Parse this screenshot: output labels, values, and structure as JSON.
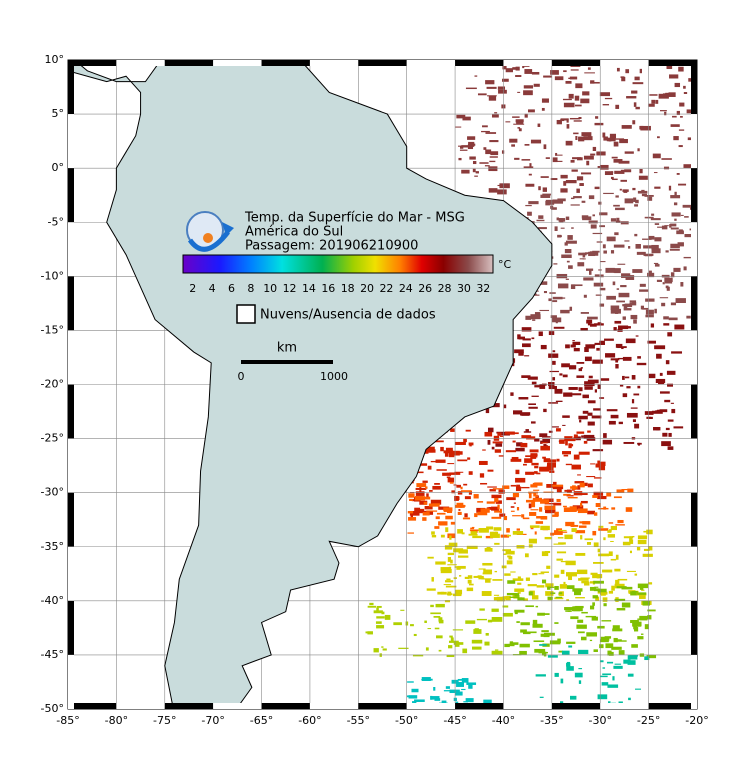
{
  "header": {
    "title": "Temp. da Superfície do Mar - MSG",
    "region": "América do Sul",
    "pass": "Passagem: 201906210900"
  },
  "colorbar": {
    "unit": "°C",
    "ticks": [
      2,
      4,
      6,
      8,
      10,
      12,
      14,
      16,
      18,
      20,
      22,
      24,
      26,
      28,
      30,
      32
    ]
  },
  "legend": {
    "clouds": "Nuvens/Ausencia de dados"
  },
  "scale_bar": {
    "unit": "km",
    "start": 0,
    "end": 1000
  },
  "map": {
    "lon_labels": [
      "-85°",
      "-80°",
      "-75°",
      "-70°",
      "-65°",
      "-60°",
      "-55°",
      "-50°",
      "-45°",
      "-40°",
      "-35°",
      "-30°",
      "-25°",
      "-20°"
    ],
    "lat_labels": [
      "10°",
      "5°",
      "0°",
      "-5°",
      "-10°",
      "-15°",
      "-20°",
      "-25°",
      "-30°",
      "-35°",
      "-40°",
      "-45°",
      "-50°"
    ]
  }
}
